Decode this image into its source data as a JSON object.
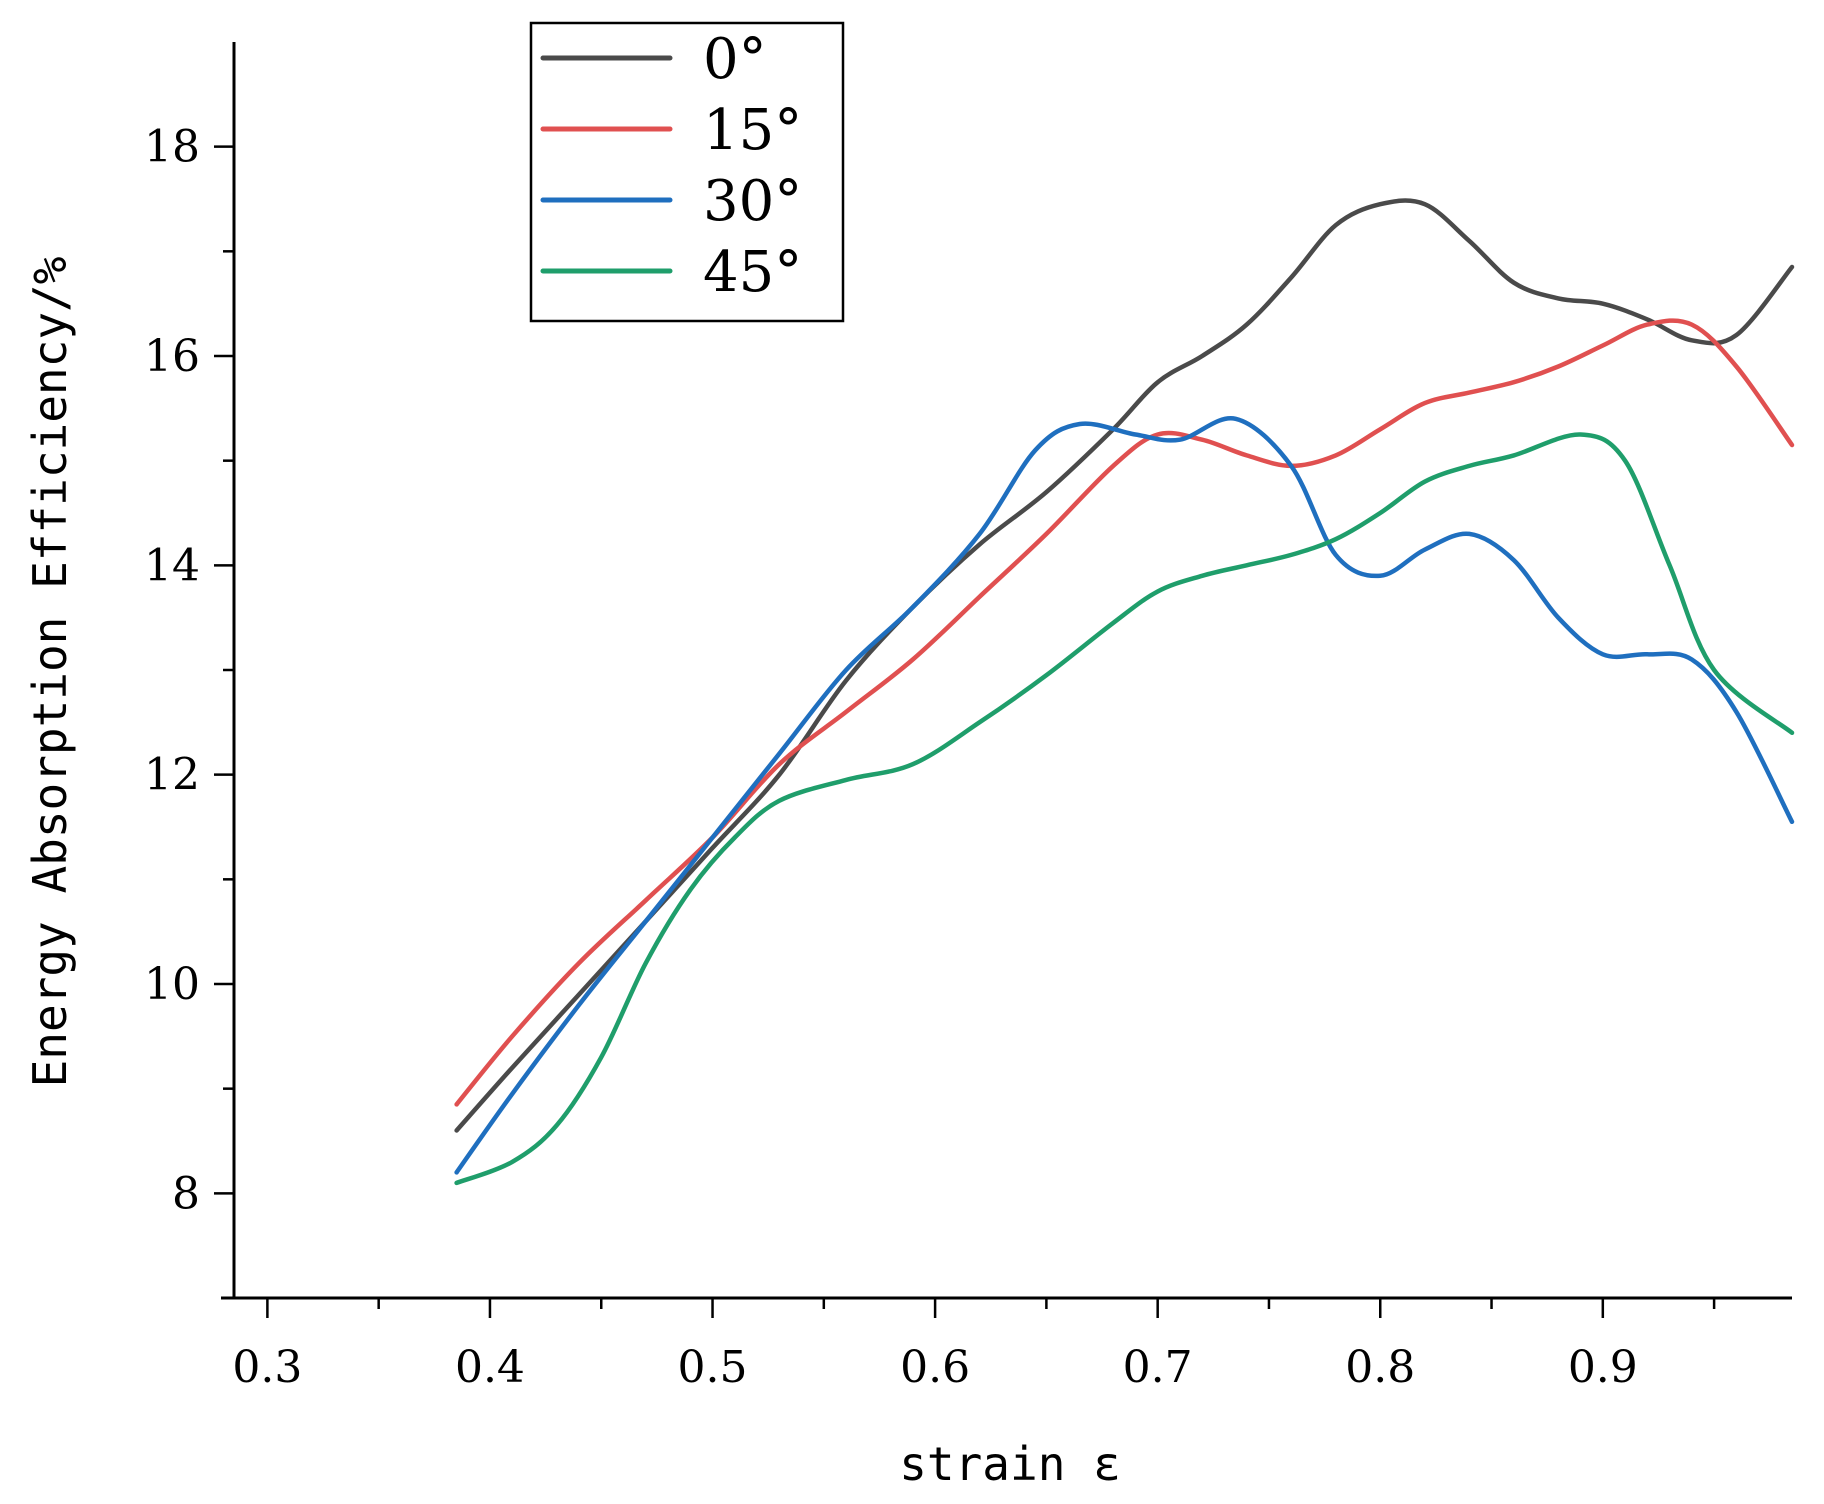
{
  "chart_data": {
    "type": "line",
    "title": "",
    "xlabel": "strain ε",
    "ylabel": "Energy Absorption Efficiency/%",
    "xlim": [
      0.285,
      0.985
    ],
    "ylim": [
      7,
      19
    ],
    "x_ticks": [
      0.3,
      0.4,
      0.5,
      0.6,
      0.7,
      0.8,
      0.9
    ],
    "x_tick_labels": [
      "0.3",
      "0.4",
      "0.5",
      "0.6",
      "0.7",
      "0.8",
      "0.9"
    ],
    "x_minor_ticks": [
      0.35,
      0.45,
      0.55,
      0.65,
      0.75,
      0.85,
      0.95
    ],
    "y_ticks": [
      8,
      10,
      12,
      14,
      16,
      18
    ],
    "y_tick_labels": [
      "8",
      "10",
      "12",
      "14",
      "16",
      "18"
    ],
    "y_minor_ticks": [
      9,
      11,
      13,
      15,
      17
    ],
    "grid": false,
    "legend_position": "top-left",
    "series": [
      {
        "name": "0°",
        "color": "#4a4a4a",
        "x": [
          0.385,
          0.41,
          0.44,
          0.47,
          0.5,
          0.53,
          0.56,
          0.59,
          0.62,
          0.65,
          0.68,
          0.7,
          0.72,
          0.74,
          0.76,
          0.78,
          0.8,
          0.82,
          0.84,
          0.86,
          0.88,
          0.9,
          0.92,
          0.94,
          0.96,
          0.985
        ],
        "y": [
          8.6,
          9.2,
          9.9,
          10.6,
          11.3,
          12.0,
          12.9,
          13.6,
          14.2,
          14.7,
          15.3,
          15.75,
          16.0,
          16.3,
          16.75,
          17.25,
          17.45,
          17.45,
          17.1,
          16.7,
          16.55,
          16.5,
          16.35,
          16.15,
          16.2,
          16.85
        ]
      },
      {
        "name": "15°",
        "color": "#e05050",
        "x": [
          0.385,
          0.41,
          0.44,
          0.47,
          0.5,
          0.53,
          0.56,
          0.59,
          0.62,
          0.65,
          0.68,
          0.7,
          0.72,
          0.74,
          0.76,
          0.78,
          0.8,
          0.82,
          0.84,
          0.86,
          0.88,
          0.9,
          0.92,
          0.94,
          0.96,
          0.985
        ],
        "y": [
          8.85,
          9.5,
          10.2,
          10.8,
          11.4,
          12.1,
          12.6,
          13.1,
          13.7,
          14.3,
          14.95,
          15.25,
          15.2,
          15.05,
          14.95,
          15.05,
          15.3,
          15.55,
          15.65,
          15.75,
          15.9,
          16.1,
          16.3,
          16.3,
          15.9,
          15.15
        ]
      },
      {
        "name": "30°",
        "color": "#1f6fbf",
        "x": [
          0.385,
          0.41,
          0.44,
          0.47,
          0.5,
          0.53,
          0.56,
          0.59,
          0.62,
          0.645,
          0.665,
          0.69,
          0.71,
          0.735,
          0.76,
          0.78,
          0.8,
          0.82,
          0.84,
          0.86,
          0.88,
          0.9,
          0.92,
          0.94,
          0.96,
          0.985
        ],
        "y": [
          8.2,
          8.95,
          9.8,
          10.6,
          11.4,
          12.2,
          13.0,
          13.6,
          14.3,
          15.1,
          15.35,
          15.25,
          15.2,
          15.4,
          14.95,
          14.1,
          13.9,
          14.15,
          14.3,
          14.05,
          13.5,
          13.15,
          13.15,
          13.1,
          12.6,
          11.55
        ]
      },
      {
        "name": "45°",
        "color": "#1f9e6b",
        "x": [
          0.385,
          0.41,
          0.43,
          0.45,
          0.47,
          0.49,
          0.51,
          0.53,
          0.56,
          0.59,
          0.62,
          0.65,
          0.68,
          0.7,
          0.72,
          0.74,
          0.76,
          0.78,
          0.8,
          0.82,
          0.84,
          0.86,
          0.89,
          0.91,
          0.93,
          0.95,
          0.985
        ],
        "y": [
          8.1,
          8.3,
          8.65,
          9.3,
          10.2,
          10.9,
          11.4,
          11.75,
          11.95,
          12.1,
          12.5,
          12.95,
          13.45,
          13.75,
          13.9,
          14.0,
          14.1,
          14.25,
          14.5,
          14.8,
          14.95,
          15.05,
          15.25,
          15.0,
          14.0,
          13.0,
          12.4
        ]
      }
    ]
  }
}
